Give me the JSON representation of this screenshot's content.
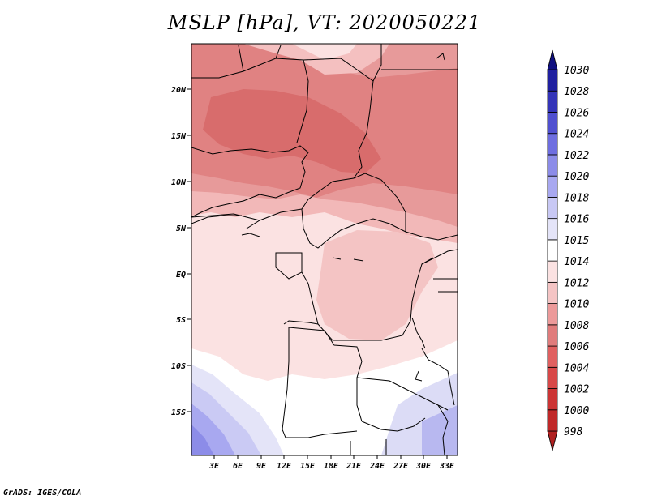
{
  "title": "MSLP [hPa], VT: 2020050221",
  "credit": "GrADS: IGES/COLA",
  "map": {
    "variable": "Mean sea level pressure",
    "units": "hPa",
    "valid_time": "2020050221",
    "region": "Central and Southern Africa",
    "lon_range": [
      0,
      34
    ],
    "lat_range": [
      -20,
      24
    ],
    "x_ticks": [
      "3E",
      "6E",
      "9E",
      "12E",
      "15E",
      "18E",
      "21E",
      "24E",
      "27E",
      "30E",
      "33E"
    ],
    "y_ticks": [
      "20N",
      "15N",
      "10N",
      "5N",
      "EQ",
      "5S",
      "10S",
      "15S"
    ]
  },
  "colorbar": {
    "levels": [
      "998",
      "1000",
      "1002",
      "1004",
      "1006",
      "1008",
      "1010",
      "1012",
      "1014",
      "1015",
      "1016",
      "1018",
      "1020",
      "1022",
      "1024",
      "1026",
      "1028",
      "1030"
    ],
    "colors": [
      "#b02020",
      "#c02828",
      "#cc3434",
      "#d84848",
      "#e06060",
      "#e07c7c",
      "#ec9a9a",
      "#f4c4c4",
      "#fbe2e2",
      "#ffffff",
      "#e4e4f8",
      "#c8c8f4",
      "#a8a8f0",
      "#8c8ce8",
      "#6e6ee0",
      "#5050d0",
      "#3434b8",
      "#2020a0",
      "#101080"
    ]
  }
}
